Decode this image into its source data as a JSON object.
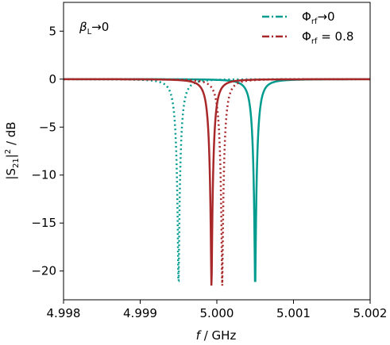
{
  "chart_data": {
    "type": "line",
    "annotation": {
      "beta": "β",
      "beta_sub": "L",
      "text": "→0"
    },
    "xlabel": {
      "var": "f",
      "unit": " / GHz"
    },
    "ylabel": {
      "pre": "|S",
      "sub": "21",
      "post": "|",
      "sup": "2",
      "unit": " / dB"
    },
    "xlim": [
      4.998,
      5.002
    ],
    "ylim": [
      -23,
      8
    ],
    "xticks": [
      4.998,
      4.999,
      5.0,
      5.001,
      5.002
    ],
    "xtick_labels": [
      "4.998",
      "4.999",
      "5.000",
      "5.001",
      "5.002"
    ],
    "yticks": [
      5,
      0,
      -5,
      -10,
      -15,
      -20
    ],
    "ytick_labels": [
      "5",
      "0",
      "−5",
      "−10",
      "−15",
      "−20"
    ],
    "grid": false,
    "legend": {
      "placement": "top-right",
      "entries": [
        {
          "label_pre": "Φ",
          "label_sub": "rf",
          "label_post": "→0",
          "color": "#009b8f"
        },
        {
          "label_pre": "Φ",
          "label_sub": "rf",
          "label_post": " = 0.8",
          "color": "#a8282a"
        }
      ]
    },
    "series": [
      {
        "legend_index": 0,
        "color": "#009b8f",
        "style": "solid",
        "center": 5.0005,
        "hwhm": 6.6e-05,
        "min_db": -21.7
      },
      {
        "legend_index": 0,
        "color": "#009b8f",
        "style": "dotted",
        "center": 4.9995,
        "hwhm": 6.6e-05,
        "min_db": -21.7
      },
      {
        "legend_index": 1,
        "color": "#a8282a",
        "style": "solid",
        "center": 4.99993,
        "hwhm": 6.6e-05,
        "min_db": -21.7
      },
      {
        "legend_index": 1,
        "color": "#a8282a",
        "style": "dotted",
        "center": 5.00007,
        "hwhm": 6.6e-05,
        "min_db": -21.7
      }
    ]
  }
}
